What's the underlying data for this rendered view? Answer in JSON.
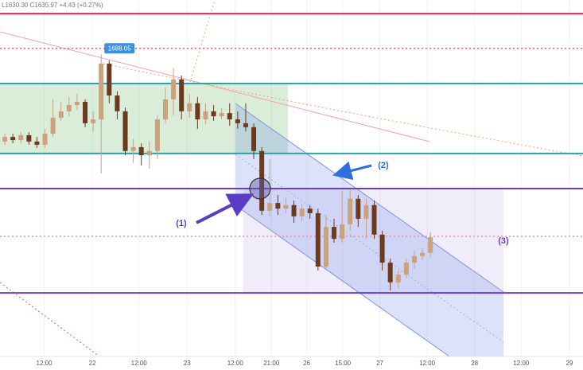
{
  "chart_data": {
    "type": "candlestick",
    "legend_text": "L1630.30 C1635.97 +4.43 (+0.27%)",
    "price_label": "1688.05",
    "annotations": [
      "(1)",
      "(2)",
      "(3)"
    ],
    "up_color": "#c9a27e",
    "down_color": "#6b3a1f",
    "xlim": [
      -0.6,
      72
    ],
    "ylim": [
      1602,
      1703.5
    ],
    "xticks": [
      {
        "value": 4.9,
        "label": "12:00"
      },
      {
        "value": 10.9,
        "label": "22"
      },
      {
        "value": 16.7,
        "label": "12:00"
      },
      {
        "value": 22.7,
        "label": "23"
      },
      {
        "value": 28.7,
        "label": "12:00"
      },
      {
        "value": 33.2,
        "label": "21:00"
      },
      {
        "value": 37.6,
        "label": "26"
      },
      {
        "value": 42.1,
        "label": "15:00"
      },
      {
        "value": 46.7,
        "label": "27"
      },
      {
        "value": 52.6,
        "label": "12:00"
      },
      {
        "value": 58.5,
        "label": "28"
      },
      {
        "value": 64.3,
        "label": "12:00"
      },
      {
        "value": 70.3,
        "label": "29"
      }
    ],
    "grid": true,
    "levels": [
      {
        "value": 1699.6,
        "color": "#d81b60",
        "style": "solid"
      },
      {
        "value": 1689.7,
        "color": "#e53950",
        "style": "dotted"
      },
      {
        "value": 1679.7,
        "color": "#26a6a6",
        "style": "solid"
      },
      {
        "value": 1659.8,
        "color": "#26a6a6",
        "style": "solid"
      },
      {
        "value": 1649.8,
        "color": "#6a3fb5",
        "style": "solid"
      },
      {
        "value": 1636.2,
        "color": "#e58aa5",
        "style": "dotted"
      },
      {
        "value": 1620.1,
        "color": "#6a3fb5",
        "style": "solid"
      }
    ],
    "open": [
      1663.2,
      1664.5,
      1663.6,
      1665.0,
      1663.2,
      1662.3,
      1665.4,
      1670.0,
      1671.8,
      1673.6,
      1674.5,
      1668.4,
      1669.5,
      1685.4,
      1676.3,
      1671.8,
      1660.5,
      1661.6,
      1659.3,
      1660.5,
      1669.5,
      1675.2,
      1680.9,
      1671.8,
      1674.1,
      1669.5,
      1671.8,
      1670.4,
      1671.3,
      1669.5,
      1668.4,
      1667.3,
      1660.5,
      1643.5,
      1645.7,
      1644.1,
      1645.1,
      1641.9,
      1644.1,
      1642.8,
      1627.6,
      1638.9,
      1635.5,
      1639.6,
      1646.9,
      1641.2,
      1645.1,
      1636.7,
      1628.7,
      1623.1,
      1625.3,
      1628.7,
      1630.6,
      1631.5
    ],
    "high": [
      1665.4,
      1665.4,
      1665.9,
      1665.9,
      1664.5,
      1666.8,
      1675.2,
      1674.5,
      1675.9,
      1676.8,
      1675.2,
      1671.8,
      1688.05,
      1686.3,
      1677.5,
      1672.9,
      1663.9,
      1662.7,
      1663.2,
      1670.7,
      1678.6,
      1684.2,
      1682.0,
      1676.8,
      1675.9,
      1674.1,
      1673.6,
      1672.7,
      1674.1,
      1671.8,
      1674.1,
      1668.4,
      1661.6,
      1658.2,
      1648.0,
      1647.3,
      1646.4,
      1645.5,
      1645.1,
      1644.1,
      1642.3,
      1641.2,
      1649.1,
      1649.6,
      1648.0,
      1646.9,
      1646.4,
      1637.8,
      1629.9,
      1626.5,
      1629.9,
      1632.1,
      1632.8,
      1637.4
    ],
    "low": [
      1662.3,
      1662.7,
      1662.7,
      1662.3,
      1661.4,
      1661.4,
      1664.5,
      1669.1,
      1670.4,
      1672.2,
      1667.3,
      1666.1,
      1654.1,
      1674.1,
      1669.5,
      1659.3,
      1657.1,
      1656.4,
      1655.5,
      1658.2,
      1668.4,
      1670.7,
      1669.5,
      1670.0,
      1666.8,
      1668.2,
      1669.1,
      1669.5,
      1667.7,
      1666.8,
      1666.1,
      1658.2,
      1642.3,
      1641.9,
      1642.3,
      1642.8,
      1640.1,
      1640.5,
      1641.2,
      1626.5,
      1626.9,
      1634.4,
      1634.4,
      1637.8,
      1638.9,
      1635.5,
      1635.5,
      1626.5,
      1620.8,
      1621.5,
      1624.2,
      1626.9,
      1629.6,
      1630.3
    ],
    "close": [
      1664.5,
      1663.6,
      1665.0,
      1663.2,
      1662.3,
      1665.4,
      1670.0,
      1671.8,
      1673.6,
      1674.5,
      1668.4,
      1669.5,
      1685.4,
      1676.3,
      1671.8,
      1660.5,
      1661.6,
      1659.3,
      1660.5,
      1669.5,
      1675.2,
      1680.9,
      1671.8,
      1674.1,
      1669.5,
      1671.8,
      1670.4,
      1671.3,
      1669.5,
      1668.4,
      1667.3,
      1660.5,
      1643.5,
      1645.7,
      1644.1,
      1645.1,
      1641.9,
      1644.1,
      1642.8,
      1627.6,
      1638.9,
      1635.5,
      1639.6,
      1646.9,
      1641.2,
      1645.1,
      1636.7,
      1628.7,
      1623.1,
      1625.3,
      1628.7,
      1630.6,
      1631.5,
      1635.97
    ]
  }
}
